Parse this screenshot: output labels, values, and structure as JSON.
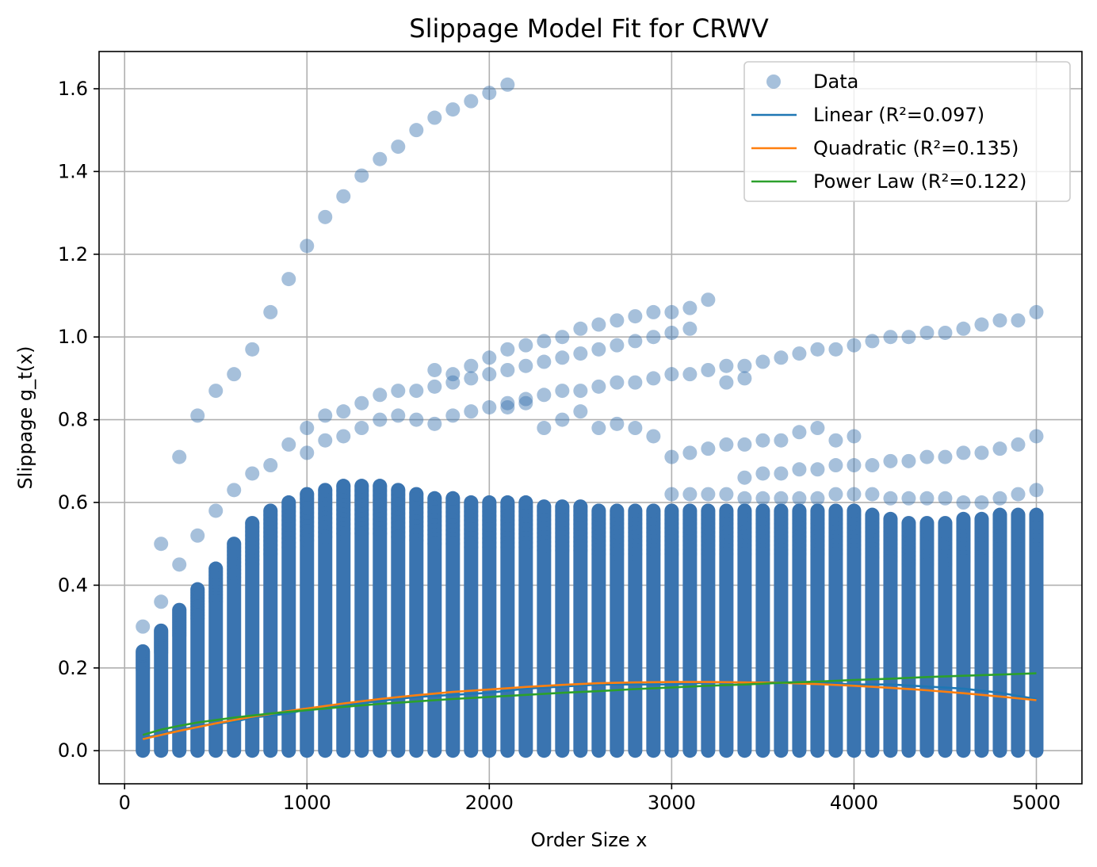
{
  "chart_data": {
    "type": "scatter",
    "title": "Slippage Model Fit for CRWV",
    "xlabel": "Order Size x",
    "ylabel": "Slippage g_t(x)",
    "xlim": [
      -140,
      5250
    ],
    "ylim": [
      -0.08,
      1.69
    ],
    "xticks": [
      0,
      1000,
      2000,
      3000,
      4000,
      5000
    ],
    "yticks": [
      0.0,
      0.2,
      0.4,
      0.6,
      0.8,
      1.0,
      1.2,
      1.4,
      1.6
    ],
    "grid": true,
    "legend_position": "top-right",
    "colors": {
      "data": "#3a74b0",
      "linear": "#1f77b4",
      "quadratic": "#ff7f0e",
      "power": "#2ca02c"
    },
    "scatter": {
      "name": "Data",
      "x_values": [
        100,
        200,
        300,
        400,
        500,
        600,
        700,
        800,
        900,
        1000,
        1100,
        1200,
        1300,
        1400,
        1500,
        1600,
        1700,
        1800,
        1900,
        2000,
        2100,
        2200,
        2300,
        2400,
        2500,
        2600,
        2700,
        2800,
        2900,
        3000,
        3100,
        3200,
        3300,
        3400,
        3500,
        3600,
        3700,
        3800,
        3900,
        4000,
        4100,
        4200,
        4300,
        4400,
        4500,
        4600,
        4700,
        4800,
        4900,
        5000
      ],
      "dense_top": [
        0.24,
        0.29,
        0.34,
        0.39,
        0.44,
        0.5,
        0.55,
        0.58,
        0.6,
        0.62,
        0.63,
        0.64,
        0.64,
        0.64,
        0.63,
        0.62,
        0.61,
        0.61,
        0.6,
        0.6,
        0.6,
        0.6,
        0.59,
        0.59,
        0.59,
        0.58,
        0.58,
        0.58,
        0.58,
        0.58,
        0.58,
        0.58,
        0.58,
        0.58,
        0.58,
        0.58,
        0.58,
        0.58,
        0.58,
        0.58,
        0.57,
        0.56,
        0.55,
        0.55,
        0.55,
        0.56,
        0.56,
        0.57,
        0.57,
        0.57
      ],
      "outlier_series": [
        {
          "x": [
            200,
            300,
            400,
            500,
            600,
            700,
            800,
            900,
            1000,
            1100,
            1200,
            1300,
            1400,
            1500,
            1600,
            1700,
            1800,
            1900,
            2000,
            2100
          ],
          "y": [
            0.5,
            0.71,
            0.81,
            0.87,
            0.91,
            0.97,
            1.06,
            1.14,
            1.22,
            1.29,
            1.34,
            1.39,
            1.43,
            1.46,
            1.5,
            1.53,
            1.55,
            1.57,
            1.59,
            1.61
          ]
        },
        {
          "x": [
            1700,
            1800,
            1900,
            2000,
            2100,
            2200,
            2300,
            2400,
            2500,
            2600,
            2700,
            2800,
            2900,
            3000,
            3100,
            3200
          ],
          "y": [
            0.92,
            0.91,
            0.93,
            0.95,
            0.97,
            0.98,
            0.99,
            1.0,
            1.02,
            1.03,
            1.04,
            1.05,
            1.06,
            1.06,
            1.07,
            1.09
          ]
        },
        {
          "x": [
            1600,
            1700,
            1800,
            1900,
            2000,
            2100,
            2200,
            2300,
            2400,
            2500,
            2600,
            2700,
            2800,
            2900,
            3000,
            3100
          ],
          "y": [
            0.87,
            0.88,
            0.89,
            0.9,
            0.91,
            0.92,
            0.93,
            0.94,
            0.95,
            0.96,
            0.97,
            0.98,
            0.99,
            1.0,
            1.01,
            1.02
          ]
        },
        {
          "x": [
            3300,
            3400,
            3500,
            3600,
            3700,
            3800,
            3900,
            4000,
            4100,
            4200,
            4300,
            4400,
            4500,
            4600,
            4700,
            4800,
            4900,
            5000
          ],
          "y": [
            0.93,
            0.93,
            0.94,
            0.95,
            0.96,
            0.97,
            0.97,
            0.98,
            0.99,
            1.0,
            1.0,
            1.01,
            1.01,
            1.02,
            1.03,
            1.04,
            1.04,
            1.06
          ]
        },
        {
          "x": [
            2100,
            2200,
            2300,
            2400,
            2500,
            2600,
            2700,
            2800,
            2900,
            3000,
            3100,
            3200,
            3300,
            3400
          ],
          "y": [
            0.84,
            0.85,
            0.86,
            0.87,
            0.87,
            0.88,
            0.89,
            0.89,
            0.9,
            0.91,
            0.91,
            0.92,
            0.89,
            0.9
          ]
        },
        {
          "x": [
            100,
            200,
            300,
            400,
            500,
            600,
            700,
            800,
            900,
            1000,
            1100,
            1200,
            1300,
            1400,
            1500
          ],
          "y": [
            0.3,
            0.36,
            0.45,
            0.52,
            0.58,
            0.63,
            0.67,
            0.69,
            0.74,
            0.78,
            0.81,
            0.82,
            0.84,
            0.86,
            0.87
          ]
        },
        {
          "x": [
            2300,
            2400,
            2500,
            2600,
            2700,
            2800,
            2900,
            3000,
            3100,
            3200,
            3300,
            3400,
            3500,
            3600,
            3700,
            3800,
            3900,
            4000
          ],
          "y": [
            0.78,
            0.8,
            0.82,
            0.78,
            0.79,
            0.78,
            0.76,
            0.71,
            0.72,
            0.73,
            0.74,
            0.74,
            0.75,
            0.75,
            0.77,
            0.78,
            0.75,
            0.76
          ]
        },
        {
          "x": [
            3400,
            3500,
            3600,
            3700,
            3800,
            3900,
            4000,
            4100,
            4200,
            4300,
            4400,
            4500,
            4600,
            4700,
            4800,
            4900,
            5000
          ],
          "y": [
            0.66,
            0.67,
            0.67,
            0.68,
            0.68,
            0.69,
            0.69,
            0.69,
            0.7,
            0.7,
            0.71,
            0.71,
            0.72,
            0.72,
            0.73,
            0.74,
            0.76
          ]
        },
        {
          "x": [
            1000,
            1100,
            1200,
            1300,
            1400,
            1500,
            1600,
            1700,
            1800,
            1900,
            2000,
            2100,
            2200
          ],
          "y": [
            0.72,
            0.75,
            0.76,
            0.78,
            0.8,
            0.81,
            0.8,
            0.79,
            0.81,
            0.82,
            0.83,
            0.83,
            0.84
          ]
        },
        {
          "x": [
            3000,
            3100,
            3200,
            3300,
            3400,
            3500,
            3600,
            3700,
            3800,
            3900,
            4000,
            4100,
            4200,
            4300,
            4400,
            4500,
            4600,
            4700,
            4800,
            4900,
            5000
          ],
          "y": [
            0.62,
            0.62,
            0.62,
            0.62,
            0.61,
            0.61,
            0.61,
            0.61,
            0.61,
            0.62,
            0.62,
            0.62,
            0.61,
            0.61,
            0.61,
            0.61,
            0.6,
            0.6,
            0.61,
            0.62,
            0.63
          ]
        }
      ]
    },
    "series": [
      {
        "name": "Linear (R²=0.097)",
        "x": [
          100,
          200,
          300,
          400,
          500,
          600,
          700,
          800,
          900,
          1000,
          1200,
          1400,
          1600,
          1800,
          2000,
          2200,
          2400,
          2600,
          2800,
          3000,
          3200,
          3400,
          3600,
          3800,
          4000,
          4200,
          4400,
          4600,
          4800,
          5000
        ],
        "y": [
          0.03,
          0.04,
          0.05,
          0.06,
          0.065,
          0.07,
          0.08,
          0.085,
          0.09,
          0.1,
          0.11,
          0.12,
          0.13,
          0.135,
          0.14,
          0.15,
          0.155,
          0.16,
          0.16,
          0.16,
          0.165,
          0.165,
          0.165,
          0.165,
          0.16,
          0.16,
          0.155,
          0.15,
          0.14,
          0.125
        ]
      },
      {
        "name": "Quadratic (R²=0.135)",
        "x": [
          100,
          200,
          300,
          400,
          500,
          600,
          700,
          800,
          900,
          1000,
          1200,
          1400,
          1600,
          1800,
          2000,
          2200,
          2400,
          2600,
          2800,
          3000,
          3200,
          3400,
          3600,
          3800,
          4000,
          4200,
          4400,
          4600,
          4800,
          5000
        ],
        "y": [
          0.028,
          0.038,
          0.048,
          0.057,
          0.066,
          0.074,
          0.082,
          0.089,
          0.096,
          0.102,
          0.114,
          0.125,
          0.134,
          0.142,
          0.148,
          0.154,
          0.159,
          0.163,
          0.165,
          0.166,
          0.166,
          0.165,
          0.164,
          0.161,
          0.157,
          0.152,
          0.146,
          0.139,
          0.131,
          0.122
        ]
      },
      {
        "name": "Power Law (R²=0.122)",
        "x": [
          100,
          200,
          300,
          400,
          500,
          600,
          700,
          800,
          900,
          1000,
          1200,
          1400,
          1600,
          1800,
          2000,
          2200,
          2400,
          2600,
          2800,
          3000,
          3200,
          3400,
          3600,
          3800,
          4000,
          4200,
          4400,
          4600,
          4800,
          5000
        ],
        "y": [
          0.038,
          0.051,
          0.06,
          0.068,
          0.074,
          0.08,
          0.085,
          0.09,
          0.094,
          0.098,
          0.106,
          0.113,
          0.119,
          0.125,
          0.13,
          0.135,
          0.14,
          0.144,
          0.149,
          0.153,
          0.157,
          0.16,
          0.164,
          0.167,
          0.171,
          0.174,
          0.178,
          0.181,
          0.184,
          0.187
        ]
      }
    ],
    "legend": [
      {
        "label": "Data",
        "kind": "marker"
      },
      {
        "label": "Linear (R²=0.097)",
        "kind": "line"
      },
      {
        "label": "Quadratic (R²=0.135)",
        "kind": "line"
      },
      {
        "label": "Power Law (R²=0.122)",
        "kind": "line"
      }
    ]
  }
}
